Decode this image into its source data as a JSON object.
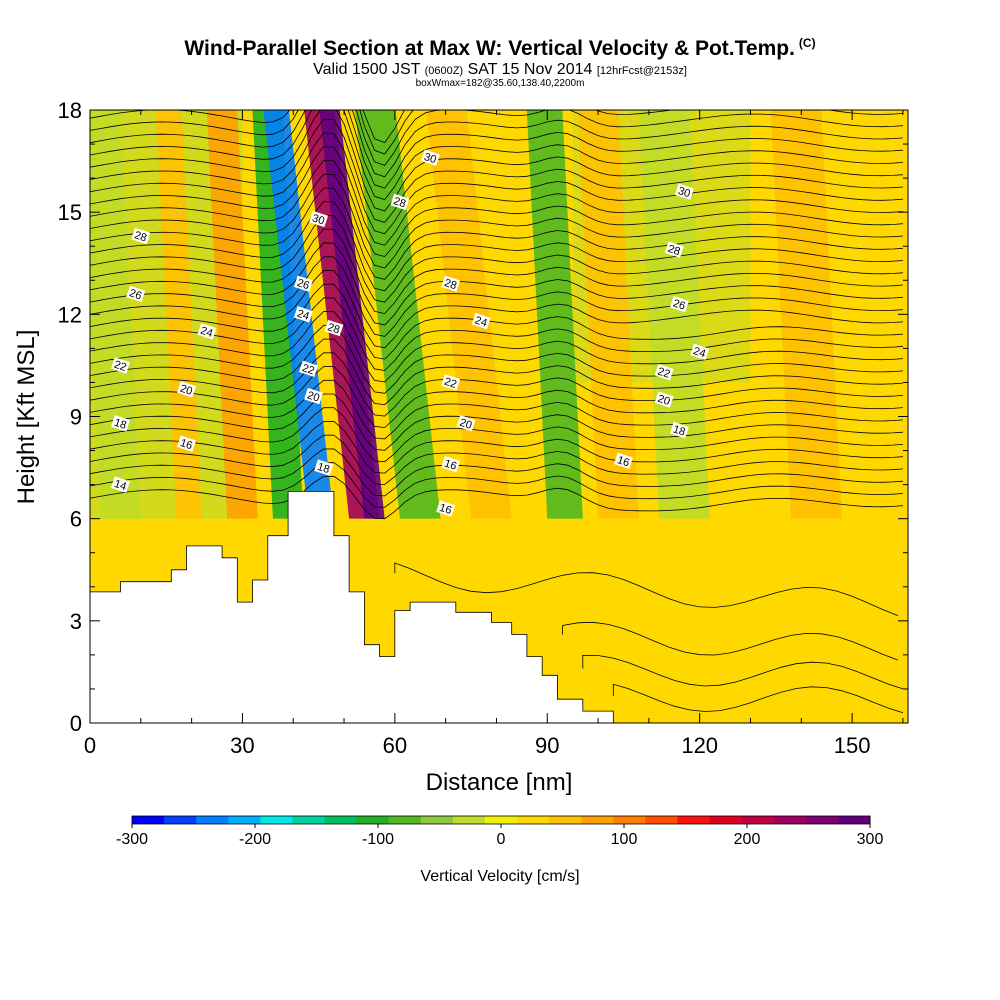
{
  "header": {
    "title": "Wind-Parallel Section at Max W: Vertical Velocity & Pot.Temp.",
    "copyright": "(C)",
    "valid_prefix": "Valid 1500 JST",
    "valid_utc": "(0600Z)",
    "valid_suffix": "SAT 15 Nov 2014",
    "forecast": "[12hrFcst@2153z]",
    "box_info": "boxWmax=182@35.60,138.40,2200m"
  },
  "chart_data": {
    "type": "heatmap",
    "xlabel": "Distance [nm]",
    "ylabel": "Height [Kft MSL]",
    "xlim": [
      0,
      161
    ],
    "ylim": [
      0,
      18
    ],
    "x_ticks": [
      "0",
      "30",
      "60",
      "90",
      "120",
      "150"
    ],
    "y_ticks": [
      "0",
      "3",
      "6",
      "9",
      "12",
      "15",
      "18"
    ],
    "colorbar": {
      "label": "Vertical Velocity [cm/s]",
      "range": [
        -300,
        300
      ],
      "tick_labels": [
        "-300",
        "-200",
        "-100",
        "0",
        "100",
        "200",
        "300"
      ],
      "tick_values": [
        -300,
        -200,
        -100,
        0,
        100,
        200,
        300
      ],
      "colors": [
        "#0000ff",
        "#0040ff",
        "#0080ff",
        "#00b0ff",
        "#00e8e8",
        "#00d4a0",
        "#00c060",
        "#20b020",
        "#50b820",
        "#8cc83c",
        "#c0dc28",
        "#f0f000",
        "#ffd800",
        "#ffc000",
        "#ffa000",
        "#ff8000",
        "#ff5000",
        "#ff1010",
        "#e00020",
        "#c00040",
        "#a00060",
        "#800070",
        "#600080"
      ]
    },
    "terrain": [
      [
        0,
        3.85
      ],
      [
        6,
        3.85
      ],
      [
        6,
        4.15
      ],
      [
        16,
        4.15
      ],
      [
        16,
        4.5
      ],
      [
        19,
        4.5
      ],
      [
        19,
        5.2
      ],
      [
        26,
        5.2
      ],
      [
        26,
        4.85
      ],
      [
        29,
        4.85
      ],
      [
        29,
        3.55
      ],
      [
        32,
        3.55
      ],
      [
        32,
        4.2
      ],
      [
        35,
        4.2
      ],
      [
        35,
        5.5
      ],
      [
        39,
        5.5
      ],
      [
        39,
        6.8
      ],
      [
        48,
        6.8
      ],
      [
        48,
        5.5
      ],
      [
        51,
        5.5
      ],
      [
        51,
        3.85
      ],
      [
        54,
        3.85
      ],
      [
        54,
        2.3
      ],
      [
        57,
        2.3
      ],
      [
        57,
        1.95
      ],
      [
        60,
        1.95
      ],
      [
        60,
        3.3
      ],
      [
        63,
        3.3
      ],
      [
        63,
        3.55
      ],
      [
        72,
        3.55
      ],
      [
        72,
        3.25
      ],
      [
        79,
        3.25
      ],
      [
        79,
        2.95
      ],
      [
        83,
        2.95
      ],
      [
        83,
        2.6
      ],
      [
        86,
        2.6
      ],
      [
        86,
        1.95
      ],
      [
        89,
        1.95
      ],
      [
        89,
        1.4
      ],
      [
        92,
        1.4
      ],
      [
        92,
        0.7
      ],
      [
        97,
        0.7
      ],
      [
        97,
        0.35
      ],
      [
        103,
        0.35
      ],
      [
        103,
        0
      ],
      [
        161,
        0
      ],
      [
        161,
        18
      ],
      [
        0,
        18
      ]
    ],
    "velocity_bands": [
      {
        "x": 2,
        "w": 8,
        "v": -30
      },
      {
        "x": 17,
        "w": 5,
        "v": 60
      },
      {
        "x": 27,
        "w": 6,
        "v": 90
      },
      {
        "x": 36,
        "w": 6,
        "v": -100
      },
      {
        "x": 43,
        "w": 5,
        "v": -230
      },
      {
        "x": 51,
        "w": 6,
        "v": 230
      },
      {
        "x": 54,
        "w": 4,
        "v": 300
      },
      {
        "x": 61,
        "w": 8,
        "v": -70
      },
      {
        "x": 75,
        "w": 8,
        "v": 50
      },
      {
        "x": 90,
        "w": 7,
        "v": -90
      },
      {
        "x": 100,
        "w": 8,
        "v": 40
      },
      {
        "x": 112,
        "w": 10,
        "v": -20
      },
      {
        "x": 138,
        "w": 10,
        "v": 40
      }
    ],
    "isentrope_labels": [
      {
        "text": "14",
        "x": 6,
        "y": 7.0
      },
      {
        "text": "16",
        "x": 19,
        "y": 8.2
      },
      {
        "text": "16",
        "x": 71,
        "y": 7.6
      },
      {
        "text": "16",
        "x": 70,
        "y": 6.3
      },
      {
        "text": "16",
        "x": 105,
        "y": 7.7
      },
      {
        "text": "18",
        "x": 6,
        "y": 8.8
      },
      {
        "text": "18",
        "x": 46,
        "y": 7.5
      },
      {
        "text": "18",
        "x": 116,
        "y": 8.6
      },
      {
        "text": "20",
        "x": 19,
        "y": 9.8
      },
      {
        "text": "20",
        "x": 44,
        "y": 9.6
      },
      {
        "text": "20",
        "x": 74,
        "y": 8.8
      },
      {
        "text": "20",
        "x": 113,
        "y": 9.5
      },
      {
        "text": "22",
        "x": 6,
        "y": 10.5
      },
      {
        "text": "22",
        "x": 43,
        "y": 10.4
      },
      {
        "text": "22",
        "x": 71,
        "y": 10.0
      },
      {
        "text": "22",
        "x": 113,
        "y": 10.3
      },
      {
        "text": "24",
        "x": 23,
        "y": 11.5
      },
      {
        "text": "24",
        "x": 42,
        "y": 12.0
      },
      {
        "text": "24",
        "x": 77,
        "y": 11.8
      },
      {
        "text": "24",
        "x": 120,
        "y": 10.9
      },
      {
        "text": "26",
        "x": 9,
        "y": 12.6
      },
      {
        "text": "26",
        "x": 42,
        "y": 12.9
      },
      {
        "text": "26",
        "x": 116,
        "y": 12.3
      },
      {
        "text": "28",
        "x": 10,
        "y": 14.3
      },
      {
        "text": "28",
        "x": 48,
        "y": 11.6
      },
      {
        "text": "28",
        "x": 71,
        "y": 12.9
      },
      {
        "text": "28",
        "x": 115,
        "y": 13.9
      },
      {
        "text": "28",
        "x": 61,
        "y": 15.3
      },
      {
        "text": "30",
        "x": 45,
        "y": 14.8
      },
      {
        "text": "30",
        "x": 67,
        "y": 16.6
      },
      {
        "text": "30",
        "x": 117,
        "y": 15.6
      }
    ]
  }
}
